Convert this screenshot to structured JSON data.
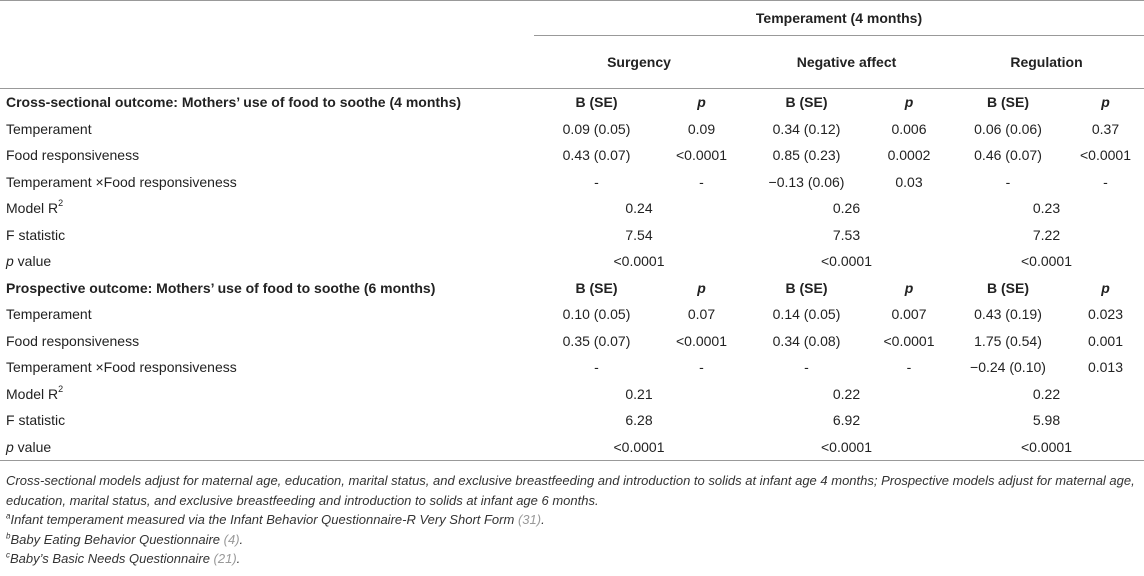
{
  "header": {
    "group": "Temperament (4 months)",
    "columns": [
      "Surgency",
      "Negative affect",
      "Regulation"
    ]
  },
  "sections": [
    {
      "title": "Cross-sectional outcome: Mothers’ use of food to soothe (4 months)",
      "b_label": "B (SE)",
      "p_label": "p",
      "rows": [
        {
          "label": "Temperament",
          "cells": [
            "0.09 (0.05)",
            "0.09",
            "0.34 (0.12)",
            "0.006",
            "0.06 (0.06)",
            "0.37"
          ]
        },
        {
          "label": "Food responsiveness",
          "cells": [
            "0.43 (0.07)",
            "<0.0001",
            "0.85 (0.23)",
            "0.0002",
            "0.46 (0.07)",
            "<0.0001"
          ]
        },
        {
          "label": "Temperament ×Food responsiveness",
          "cells": [
            "-",
            "-",
            "−0.13 (0.06)",
            "0.03",
            "-",
            "-"
          ]
        }
      ],
      "model_r2_label": "Model R",
      "model_r2_sup": "2",
      "model_r2": [
        "0.24",
        "0.26",
        "0.23"
      ],
      "f_label": "F statistic",
      "f": [
        "7.54",
        "7.53",
        "7.22"
      ],
      "pv_label_p": "p",
      "pv_label_rest": " value",
      "pv": [
        "<0.0001",
        "<0.0001",
        "<0.0001"
      ]
    },
    {
      "title": "Prospective outcome: Mothers’ use of food to soothe (6 months)",
      "b_label": "B (SE)",
      "p_label": "p",
      "rows": [
        {
          "label": "Temperament",
          "cells": [
            "0.10 (0.05)",
            "0.07",
            "0.14 (0.05)",
            "0.007",
            "0.43 (0.19)",
            "0.023"
          ]
        },
        {
          "label": "Food responsiveness",
          "cells": [
            "0.35 (0.07)",
            "<0.0001",
            "0.34 (0.08)",
            "<0.0001",
            "1.75 (0.54)",
            "0.001"
          ]
        },
        {
          "label": "Temperament ×Food responsiveness",
          "cells": [
            "-",
            "-",
            "-",
            "-",
            "−0.24 (0.10)",
            "0.013"
          ]
        }
      ],
      "model_r2_label": "Model R",
      "model_r2_sup": "2",
      "model_r2": [
        "0.21",
        "0.22",
        "0.22"
      ],
      "f_label": "F statistic",
      "f": [
        "6.28",
        "6.92",
        "5.98"
      ],
      "pv_label_p": "p",
      "pv_label_rest": " value",
      "pv": [
        "<0.0001",
        "<0.0001",
        "<0.0001"
      ]
    }
  ],
  "notes": {
    "main": "Cross-sectional models adjust for maternal age, education, marital status, and exclusive breastfeeding and introduction to solids at infant age 4 months; Prospective models adjust for maternal age, education, marital status, and exclusive breastfeeding and introduction to solids at infant age 6 months.",
    "a_mark": "a",
    "a_text": "Infant temperament measured via the Infant Behavior Questionnaire-R Very Short Form ",
    "a_cite": "(31)",
    "b_mark": "b",
    "b_text": "Baby Eating Behavior Questionnaire ",
    "b_cite": "(4)",
    "c_mark": "c",
    "c_text": "Baby’s Basic Needs Questionnaire ",
    "c_cite": "(21)",
    "end": "."
  }
}
